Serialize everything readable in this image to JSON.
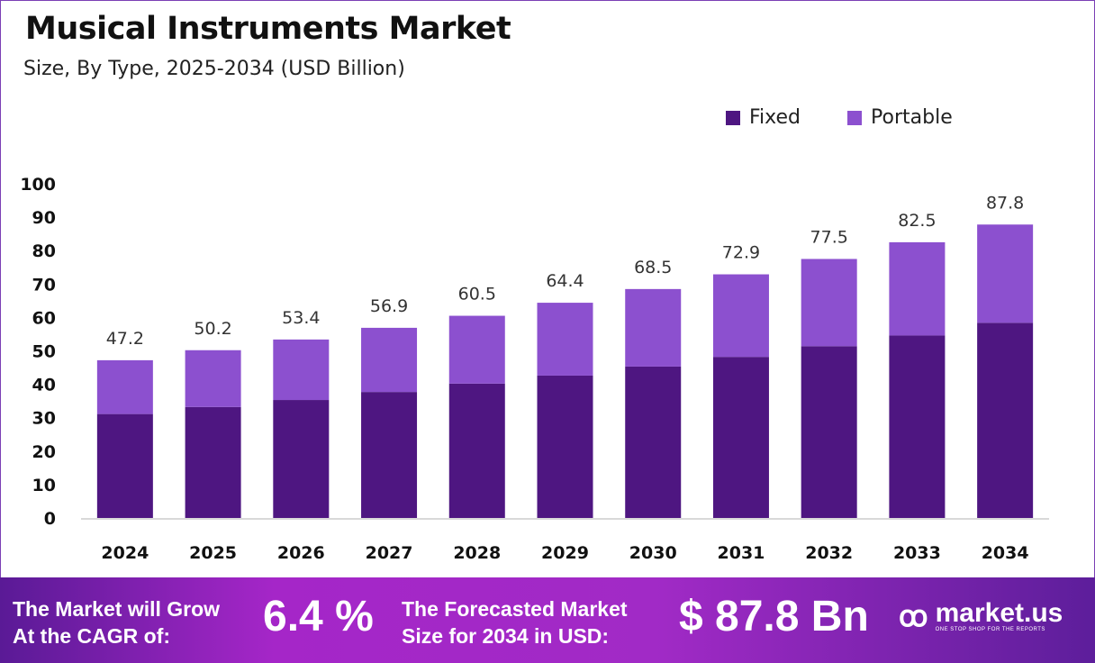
{
  "chart_data": {
    "type": "bar",
    "stacked": true,
    "title": "Musical Instruments Market",
    "subtitle": "Size, By Type, 2025-2034 (USD Billion)",
    "categories": [
      "2024",
      "2025",
      "2026",
      "2027",
      "2028",
      "2029",
      "2030",
      "2031",
      "2032",
      "2033",
      "2034"
    ],
    "series": [
      {
        "name": "Fixed",
        "color": "#4e1681",
        "values": [
          31.1,
          33.2,
          35.3,
          37.7,
          40.2,
          42.6,
          45.3,
          48.2,
          51.4,
          54.6,
          58.4
        ]
      },
      {
        "name": "Portable",
        "color": "#8c50cf",
        "values": [
          16.1,
          17.0,
          18.1,
          19.2,
          20.3,
          21.8,
          23.2,
          24.7,
          26.1,
          27.9,
          29.4
        ]
      }
    ],
    "totals": [
      "47.2",
      "50.2",
      "53.4",
      "56.9",
      "60.5",
      "64.4",
      "68.5",
      "72.9",
      "77.5",
      "82.5",
      "87.8"
    ],
    "ylim": [
      0,
      100
    ],
    "yticks": [
      "0",
      "10",
      "20",
      "30",
      "40",
      "50",
      "60",
      "70",
      "80",
      "90",
      "100"
    ],
    "grid": false,
    "legend_position": "top-right"
  },
  "footer": {
    "cagr_label_1": "The Market will Grow",
    "cagr_label_2": "At the CAGR of:",
    "cagr_value": "6.4 %",
    "forecast_label_1": "The Forecasted Market",
    "forecast_label_2": "Size for 2034 in USD:",
    "forecast_value": "$ 87.8 Bn",
    "brand": "market.us",
    "tagline": "ONE STOP SHOP FOR THE REPORTS"
  }
}
